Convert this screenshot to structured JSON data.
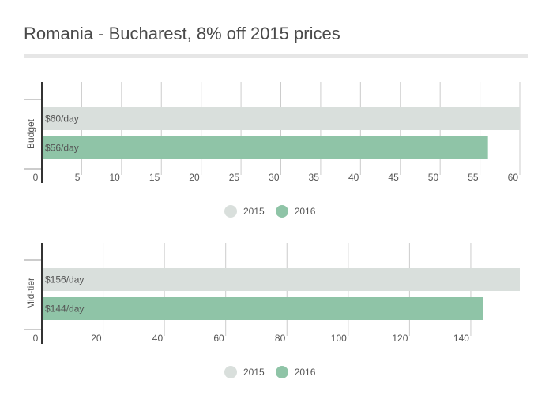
{
  "title": "Romania - Bucharest, 8% off 2015 prices",
  "colors": {
    "y2015": "#d9dfdc",
    "y2016": "#8fc4a7",
    "grid": "#cccccc",
    "axis": "#333333"
  },
  "legend": [
    {
      "label": "2015",
      "color": "#d9dfdc"
    },
    {
      "label": "2016",
      "color": "#8fc4a7"
    }
  ],
  "chart_data": [
    {
      "type": "bar",
      "orientation": "horizontal",
      "category": "Budget",
      "xlim": [
        0,
        60
      ],
      "ticks": [
        0,
        5,
        10,
        15,
        20,
        25,
        30,
        35,
        40,
        45,
        50,
        55,
        60
      ],
      "series": [
        {
          "name": "2015",
          "value": 60,
          "label": "$60/day"
        },
        {
          "name": "2016",
          "value": 56,
          "label": "$56/day"
        }
      ],
      "legend_position": "bottom"
    },
    {
      "type": "bar",
      "orientation": "horizontal",
      "category": "Mid-tier",
      "xlim": [
        0,
        156
      ],
      "ticks": [
        0,
        20,
        40,
        60,
        80,
        100,
        120,
        140
      ],
      "series": [
        {
          "name": "2015",
          "value": 156,
          "label": "$156/day"
        },
        {
          "name": "2016",
          "value": 144,
          "label": "$144/day"
        }
      ],
      "legend_position": "bottom"
    }
  ]
}
